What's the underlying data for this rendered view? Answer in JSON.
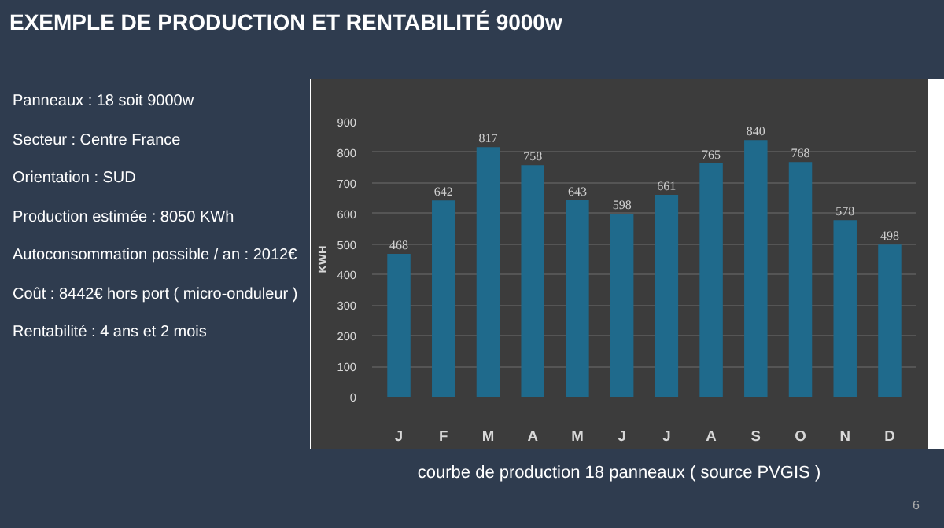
{
  "chart_data": {
    "type": "bar",
    "title": "EXEMPLE DE PRODUCTION ET RENTABILITÉ 9000w",
    "categories": [
      "J",
      "F",
      "M",
      "A",
      "M",
      "J",
      "J",
      "A",
      "S",
      "O",
      "N",
      "D"
    ],
    "values": [
      468,
      642,
      817,
      758,
      643,
      598,
      661,
      765,
      840,
      768,
      578,
      498
    ],
    "color": "#1f6a8c",
    "ylabel": "KWH",
    "ylim": [
      0,
      900
    ],
    "yticks": [
      0,
      100,
      200,
      300,
      400,
      500,
      600,
      700,
      800,
      900
    ],
    "grid": "y",
    "data_labels": true,
    "annotations": [
      "Panneaux : 18 soit 9000w",
      "Secteur : Centre France",
      "Orientation : SUD",
      "Production estimée : 8050 KWh",
      "Autoconsommation possible / an : 2012€",
      "Coût : 8442€ hors port ( micro-onduleur )",
      "Rentabilité : 4 ans et 2 mois",
      "courbe de production 18 panneaux ( source PVGIS )",
      "6"
    ]
  }
}
